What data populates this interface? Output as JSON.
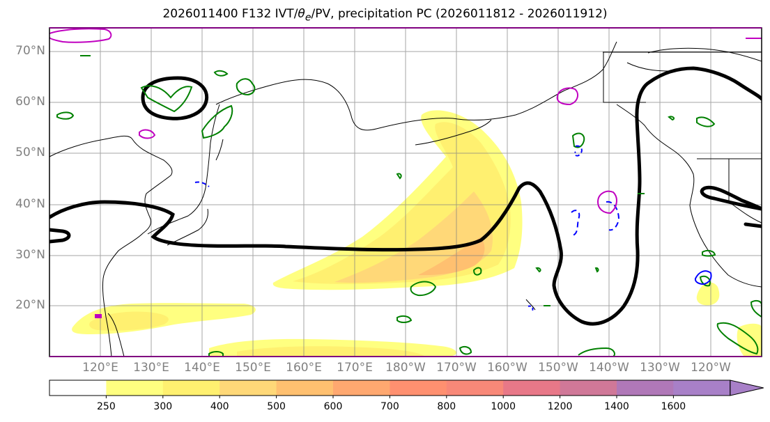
{
  "title": "2026011400 F132 IVT/θe/PV, precipitation PC (2026011812 - 2026011912)",
  "title_parts": {
    "prefix": "2026011400 F132 IVT/",
    "theta": "θ",
    "sub": "e",
    "suffix": "/PV, precipitation PC (2026011812 - 2026011912)"
  },
  "map": {
    "projection": "PlateCarree",
    "lon_range_east": [
      110,
      250
    ],
    "lat_range": [
      10,
      75
    ],
    "gridlines": true
  },
  "lat_labels": [
    "70°N",
    "60°N",
    "50°N",
    "40°N",
    "30°N",
    "20°N"
  ],
  "lon_labels": [
    "120°E",
    "130°E",
    "140°E",
    "150°E",
    "160°E",
    "170°E",
    "180°W",
    "170°W",
    "160°W",
    "150°W",
    "140°W",
    "130°W",
    "120°W"
  ],
  "colorbar": {
    "levels": [
      "250",
      "300",
      "400",
      "500",
      "600",
      "700",
      "800",
      "1000",
      "1200",
      "1400",
      "1600"
    ],
    "colors": [
      "#ffffff",
      "#ffff80",
      "#fff070",
      "#ffd878",
      "#ffc070",
      "#ffa870",
      "#ff9070",
      "#f88878",
      "#e87888",
      "#d07898",
      "#b078b8",
      "#a880c8"
    ],
    "extend": "max"
  },
  "colors": {
    "ivt_contour": "#000000",
    "pv_positive": "#008000",
    "pv_negative": "#0000ff",
    "theta_contour": "#c000c0",
    "coastline": "#000000",
    "grid": "#808080"
  }
}
